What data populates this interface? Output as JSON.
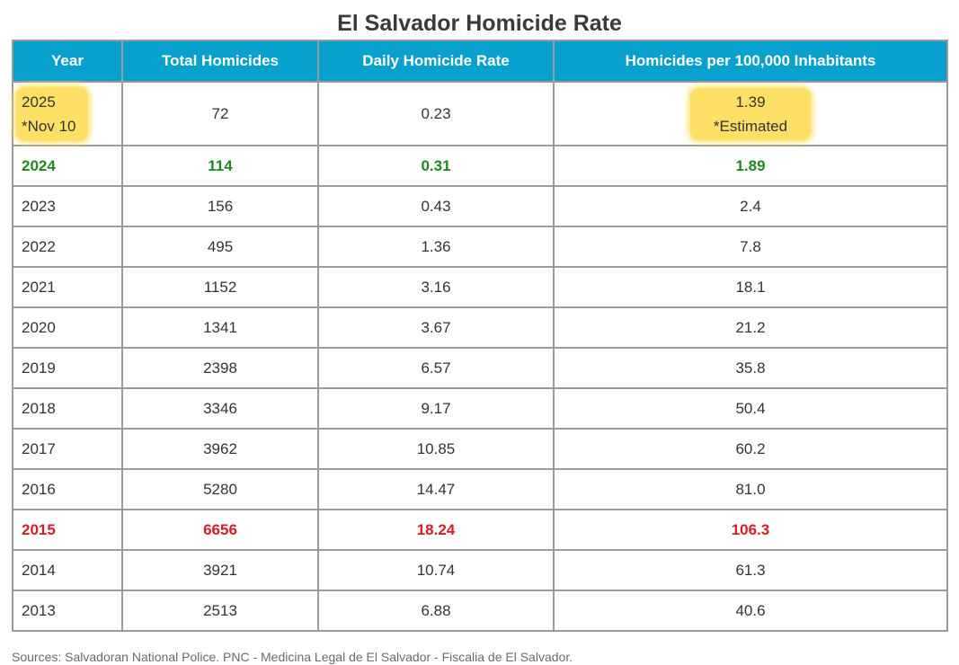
{
  "chart_data": {
    "type": "table",
    "title": "El Salvador Homicide Rate",
    "columns": [
      "Year",
      "Total Homicides",
      "Daily Homicide Rate",
      "Homicides per 100,000 Inhabitants"
    ],
    "rows": [
      {
        "year": "2025",
        "year_note": "*Nov 10",
        "total": "72",
        "daily": "0.23",
        "per100k": "1.39",
        "per100k_note": "*Estimated",
        "style": "highlight"
      },
      {
        "year": "2024",
        "total": "114",
        "daily": "0.31",
        "per100k": "1.89",
        "style": "green"
      },
      {
        "year": "2023",
        "total": "156",
        "daily": "0.43",
        "per100k": "2.4",
        "style": "normal"
      },
      {
        "year": "2022",
        "total": "495",
        "daily": "1.36",
        "per100k": "7.8",
        "style": "normal"
      },
      {
        "year": "2021",
        "total": "1152",
        "daily": "3.16",
        "per100k": "18.1",
        "style": "normal"
      },
      {
        "year": "2020",
        "total": "1341",
        "daily": "3.67",
        "per100k": "21.2",
        "style": "normal"
      },
      {
        "year": "2019",
        "total": "2398",
        "daily": "6.57",
        "per100k": "35.8",
        "style": "normal"
      },
      {
        "year": "2018",
        "total": "3346",
        "daily": "9.17",
        "per100k": "50.4",
        "style": "normal"
      },
      {
        "year": "2017",
        "total": "3962",
        "daily": "10.85",
        "per100k": "60.2",
        "style": "normal"
      },
      {
        "year": "2016",
        "total": "5280",
        "daily": "14.47",
        "per100k": "81.0",
        "style": "normal"
      },
      {
        "year": "2015",
        "total": "6656",
        "daily": "18.24",
        "per100k": "106.3",
        "style": "red"
      },
      {
        "year": "2014",
        "total": "3921",
        "daily": "10.74",
        "per100k": "61.3",
        "style": "normal"
      },
      {
        "year": "2013",
        "total": "2513",
        "daily": "6.88",
        "per100k": "40.6",
        "style": "normal"
      }
    ],
    "source": "Sources: Salvadoran National Police. PNC - Medicina Legal de El Salvador - Fiscalia de El Salvador."
  },
  "colors": {
    "header_bg": "#08a0cc",
    "header_text": "#ffffff",
    "highlight": "#ffe066",
    "green": "#1e8a1e",
    "red": "#d01f26",
    "border": "#9a9a9a"
  }
}
